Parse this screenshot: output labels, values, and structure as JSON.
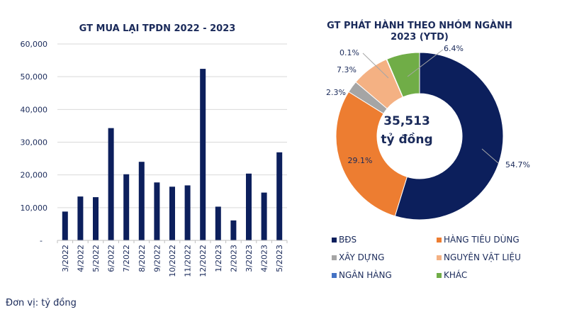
{
  "chart_data": [
    {
      "type": "bar",
      "title": "GT MUA LẠI TPDN 2022 - 2023",
      "categories": [
        "3/2022",
        "4/2022",
        "5/2022",
        "6/2022",
        "7/2022",
        "8/2022",
        "9/2022",
        "10/2022",
        "11/2022",
        "12/2022",
        "1/2023",
        "2/2023",
        "3/2023",
        "4/2023",
        "5/2023"
      ],
      "values": [
        8800,
        13400,
        13200,
        34300,
        20200,
        24000,
        17700,
        16400,
        16800,
        52400,
        10300,
        6100,
        20400,
        14600,
        26900
      ],
      "ylim": [
        0,
        60000
      ],
      "yticks": [
        "-",
        "10,000",
        "20,000",
        "30,000",
        "40,000",
        "50,000",
        "60,000"
      ],
      "grid": true,
      "color": "#0c1f5c"
    },
    {
      "type": "pie",
      "title_line1": "GT PHÁT HÀNH THEO NHÓM NGÀNH",
      "title_line2": "2023 (YTD)",
      "center_value": "35,513",
      "center_unit": "tỷ đồng",
      "donut": true,
      "slices": [
        {
          "label": "BĐS",
          "value": 54.7,
          "text": "54.7%",
          "color": "#0c1f5c"
        },
        {
          "label": "HÀNG TIÊU DÙNG",
          "value": 29.1,
          "text": "29.1%",
          "color": "#ed7d31"
        },
        {
          "label": "XÂY DỰNG",
          "value": 2.3,
          "text": "2.3%",
          "color": "#a5a5a5"
        },
        {
          "label": "NGUYÊN VẬT LIỆU",
          "value": 7.3,
          "text": "7.3%",
          "color": "#f4b183"
        },
        {
          "label": "NGÂN HÀNG",
          "value": 0.1,
          "text": "0.1%",
          "color": "#4472c4"
        },
        {
          "label": "KHÁC",
          "value": 6.4,
          "text": "6.4%",
          "color": "#70ad47"
        }
      ],
      "legend_position": "bottom"
    }
  ],
  "footnote": "Đơn vị: tỷ đồng"
}
